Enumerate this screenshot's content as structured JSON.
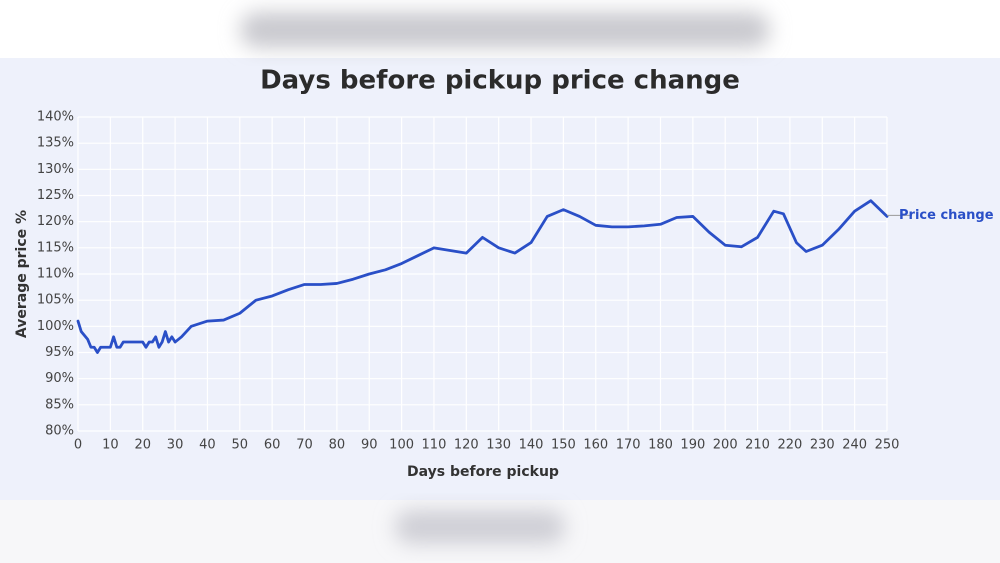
{
  "chart_data": {
    "type": "line",
    "title": "Days before pickup price change",
    "xlabel": "Days before pickup",
    "ylabel": "Average price %",
    "x": [
      0,
      1,
      3,
      4,
      5,
      6,
      7,
      9,
      10,
      11,
      12,
      13,
      14,
      16,
      18,
      20,
      21,
      22,
      23,
      24,
      25,
      26,
      27,
      28,
      29,
      30,
      32,
      35,
      40,
      45,
      50,
      55,
      60,
      65,
      70,
      75,
      80,
      85,
      90,
      95,
      100,
      105,
      110,
      115,
      120,
      125,
      130,
      135,
      140,
      145,
      150,
      155,
      160,
      165,
      170,
      175,
      180,
      185,
      190,
      195,
      200,
      205,
      210,
      215,
      218,
      222,
      225,
      230,
      235,
      240,
      245,
      250
    ],
    "series": [
      {
        "name": "Price change",
        "color": "#2a4fc7",
        "values": [
          101,
          99,
          97.5,
          96,
          96,
          95,
          96,
          96,
          96,
          98,
          96,
          96,
          97,
          97,
          97,
          97,
          96,
          97,
          97,
          98,
          96,
          97,
          99,
          97,
          98,
          97,
          98,
          100,
          101,
          101.2,
          102.5,
          105,
          105.8,
          107,
          108,
          108,
          108.2,
          109,
          110,
          110.8,
          112,
          113.5,
          115,
          114.5,
          114,
          117,
          115,
          114,
          116,
          121,
          122.3,
          121,
          119.3,
          119,
          119,
          119.2,
          119.5,
          120.8,
          121,
          118,
          115.5,
          115.2,
          117,
          122,
          121.5,
          116,
          114.3,
          115.5,
          118.5,
          122,
          124,
          121
        ]
      }
    ],
    "xlim": [
      0,
      250
    ],
    "xticks": [
      0,
      10,
      20,
      30,
      40,
      50,
      60,
      70,
      80,
      90,
      100,
      110,
      120,
      130,
      140,
      150,
      160,
      170,
      180,
      190,
      200,
      210,
      220,
      230,
      240,
      250
    ],
    "ylim": [
      80,
      140
    ],
    "yticks": [
      {
        "value": 80,
        "label": "80%"
      },
      {
        "value": 85,
        "label": "85%"
      },
      {
        "value": 90,
        "label": "90%"
      },
      {
        "value": 95,
        "label": "95%"
      },
      {
        "value": 100,
        "label": "100%"
      },
      {
        "value": 105,
        "label": "105%"
      },
      {
        "value": 110,
        "label": "110%"
      },
      {
        "value": 115,
        "label": "115%"
      },
      {
        "value": 120,
        "label": "120%"
      },
      {
        "value": 125,
        "label": "125%"
      },
      {
        "value": 130,
        "label": "130%"
      },
      {
        "value": 135,
        "label": "135%"
      },
      {
        "value": 140,
        "label": "140%"
      }
    ],
    "grid": true
  }
}
